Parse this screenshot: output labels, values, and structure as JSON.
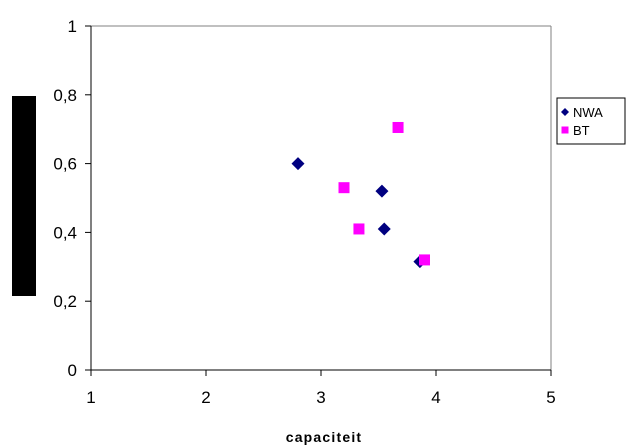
{
  "chart_data": {
    "type": "scatter",
    "title": "",
    "xlabel": "capaciteit",
    "ylabel": "",
    "xlim": [
      1,
      5
    ],
    "ylim": [
      0,
      1
    ],
    "x_ticks": [
      1,
      2,
      3,
      4,
      5
    ],
    "y_ticks": [
      0,
      0.2,
      0.4,
      0.6,
      0.8,
      1
    ],
    "x_tick_labels": [
      "1",
      "2",
      "3",
      "4",
      "5"
    ],
    "y_tick_labels": [
      "0",
      "0,2",
      "0,4",
      "0,6",
      "0,8",
      "1"
    ],
    "grid": false,
    "legend_position": "right",
    "series": [
      {
        "name": "NWA",
        "marker": "diamond",
        "color": "#000080",
        "points": [
          {
            "x": 2.8,
            "y": 0.6
          },
          {
            "x": 3.53,
            "y": 0.52
          },
          {
            "x": 3.55,
            "y": 0.41
          },
          {
            "x": 3.86,
            "y": 0.315
          }
        ]
      },
      {
        "name": "BT",
        "marker": "square",
        "color": "#ff00ff",
        "points": [
          {
            "x": 3.2,
            "y": 0.53
          },
          {
            "x": 3.33,
            "y": 0.41
          },
          {
            "x": 3.67,
            "y": 0.705
          },
          {
            "x": 3.9,
            "y": 0.32
          }
        ]
      }
    ]
  }
}
